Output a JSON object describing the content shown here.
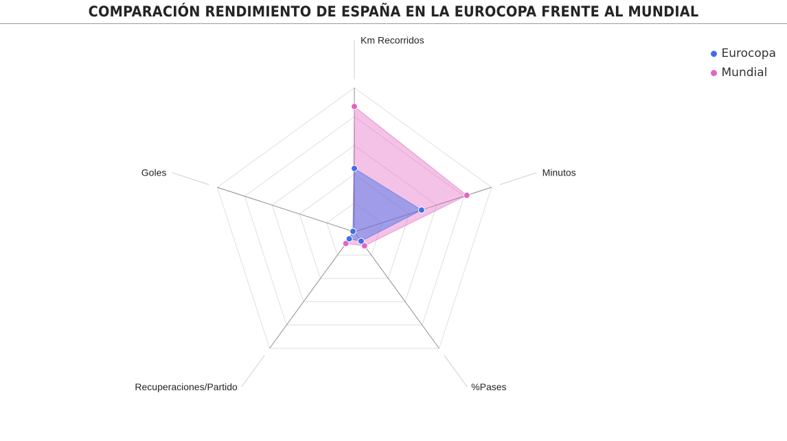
{
  "title": "COMPARACIÓN RENDIMIENTO DE ESPAÑA EN LA EUROCOPA FRENTE AL MUNDIAL",
  "colors": {
    "eurocopa": "#3f6fe8",
    "mundial": "#e066c0"
  },
  "chart_data": {
    "type": "radar",
    "axes": [
      "Km Recorridos",
      "Minutos",
      "%Pases",
      "Recuperaciones/Partido",
      "Goles"
    ],
    "series": [
      {
        "name": "Eurocopa",
        "values": [
          0.44,
          0.49,
          0.08,
          0.06,
          0.01
        ]
      },
      {
        "name": "Mundial",
        "values": [
          0.87,
          0.82,
          0.12,
          0.1,
          0.01
        ]
      }
    ],
    "grid_levels": 5,
    "legend_position": "top-right"
  }
}
